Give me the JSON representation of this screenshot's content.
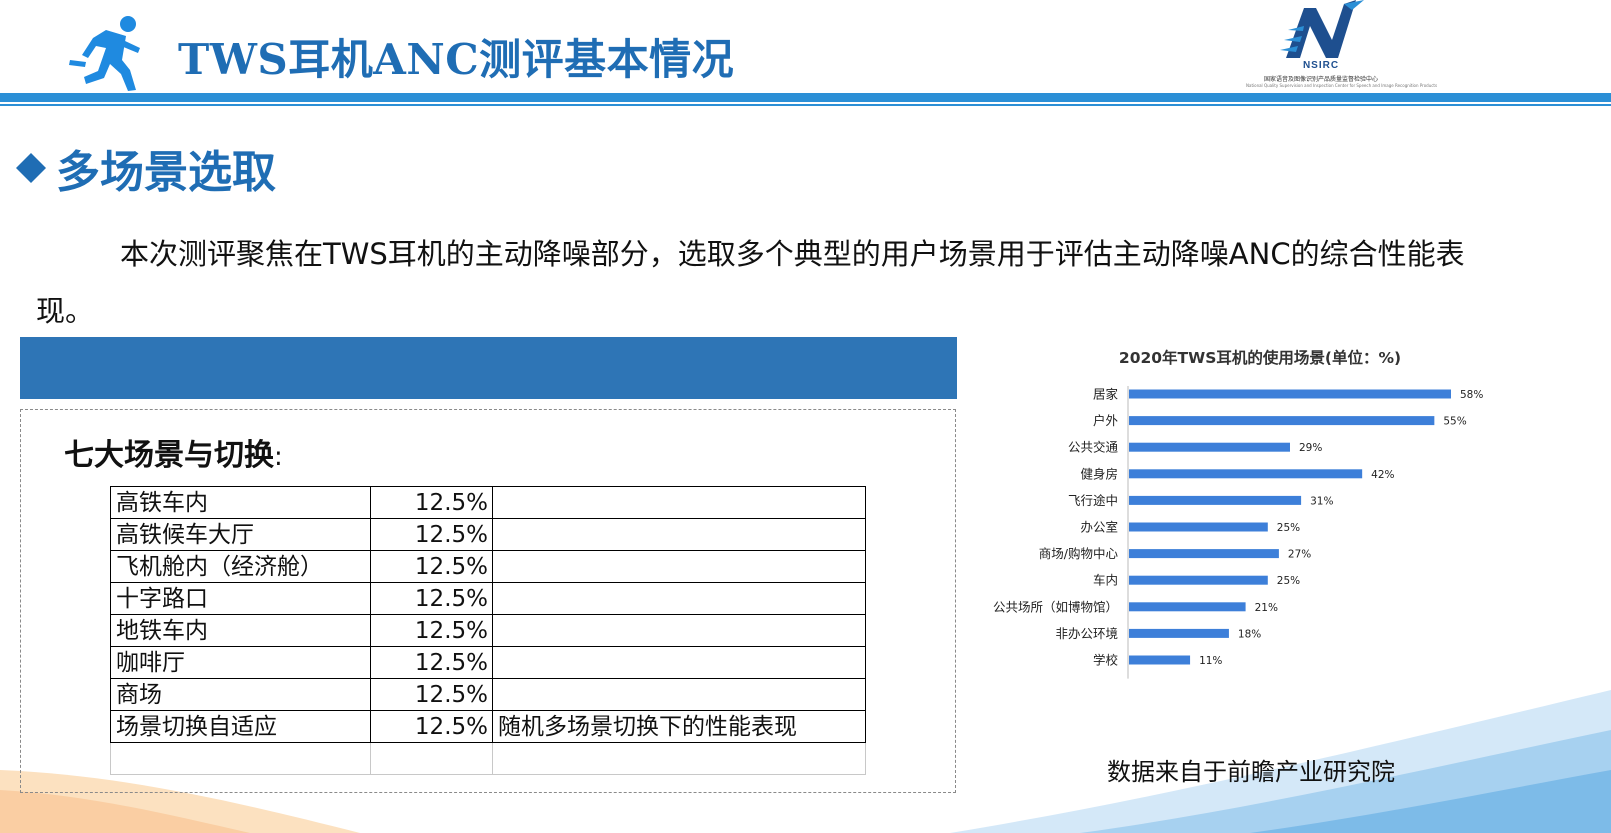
{
  "header": {
    "title": "TWS耳机ANC测评基本情况",
    "icon": "runner-icon",
    "logo": {
      "name": "NSIRC",
      "subtitle": "国家语音及图像识别产品质量监督检验中心",
      "subtitle_en": "National Quality Supervision and Inspection Center for Speech and Image Recognition Products"
    }
  },
  "section": {
    "title": "多场景选取",
    "bullet_icon": "diamond-icon"
  },
  "intro": "本次测评聚焦在TWS耳机的主动降噪部分，选取多个典型的用户场景用于评估主动降噪ANC的综合性能表现。",
  "scenes": {
    "heading": "七大场景与切换",
    "colon": ":",
    "rows": [
      {
        "name": "高铁车内",
        "pct": "12.5%",
        "note": ""
      },
      {
        "name": "高铁候车大厅",
        "pct": "12.5%",
        "note": ""
      },
      {
        "name": "飞机舱内（经济舱）",
        "pct": "12.5%",
        "note": ""
      },
      {
        "name": "十字路口",
        "pct": "12.5%",
        "note": ""
      },
      {
        "name": "地铁车内",
        "pct": "12.5%",
        "note": ""
      },
      {
        "name": "咖啡厅",
        "pct": "12.5%",
        "note": ""
      },
      {
        "name": "商场",
        "pct": "12.5%",
        "note": ""
      },
      {
        "name": "场景切换自适应",
        "pct": "12.5%",
        "note": "随机多场景切换下的性能表现"
      }
    ]
  },
  "chart_data": {
    "type": "bar",
    "orientation": "horizontal",
    "title": "2020年TWS耳机的使用场景(单位：%)",
    "categories": [
      "居家",
      "户外",
      "公共交通",
      "健身房",
      "飞行途中",
      "办公室",
      "商场/购物中心",
      "车内",
      "公共场所（如博物馆）",
      "非办公环境",
      "学校"
    ],
    "values": [
      58,
      55,
      29,
      42,
      31,
      25,
      27,
      25,
      21,
      18,
      11
    ],
    "value_labels": [
      "58%",
      "55%",
      "29%",
      "42%",
      "31%",
      "25%",
      "27%",
      "25%",
      "21%",
      "18%",
      "11%"
    ],
    "xlim": [
      0,
      58
    ],
    "bar_color": "#3d7fd9",
    "grid": false,
    "legend": "none"
  },
  "source_note": "数据来自于前瞻产业研究院",
  "colors": {
    "accent": "#1f6db4",
    "rule": "#2b8fd6",
    "banner": "#2e75b6"
  }
}
